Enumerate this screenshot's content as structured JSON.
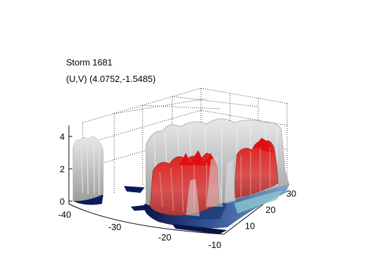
{
  "figure": {
    "title_lines": [
      "Storm 1681",
      "(U,V) (4.0752,-1.5485)"
    ]
  },
  "chart_data": {
    "type": "surface3d",
    "title": [
      "Storm 1681",
      "(U,V) (4.0752,-1.5485)"
    ],
    "xlabel": "",
    "ylabel": "",
    "zlabel": "",
    "x_ticks": [
      -40,
      -30,
      -20,
      -10
    ],
    "y_ticks": [
      10,
      20,
      30
    ],
    "z_ticks": [
      0,
      2,
      4
    ],
    "xlim": [
      -40,
      -10
    ],
    "ylim": [
      5,
      35
    ],
    "zlim": [
      0,
      5
    ],
    "grid": "dotted",
    "layers": [
      {
        "name": "outer isosurface",
        "color": "#c8c8c8"
      },
      {
        "name": "inner isosurface",
        "color": "#d01818"
      },
      {
        "name": "base slice",
        "color": "#1a2a6e"
      }
    ]
  }
}
